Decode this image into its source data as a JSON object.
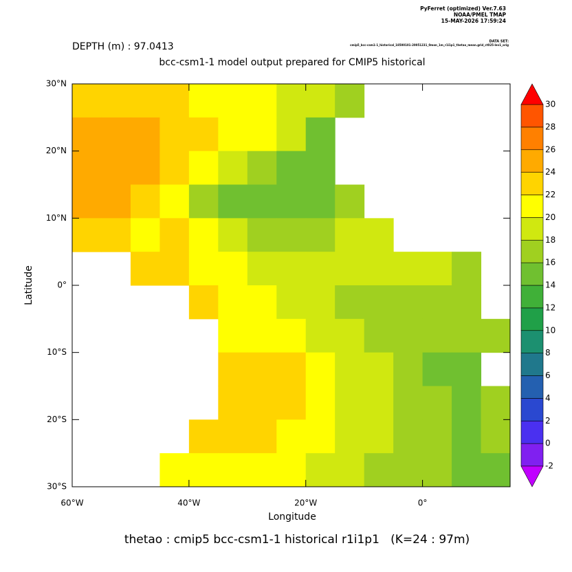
{
  "chart_data": {
    "type": "heatmap",
    "header": [
      "PyFerret (optimized) Ver.7.63",
      "NOAA/PMEL TMAP",
      "15-MAY-2026 17:59:24"
    ],
    "dataset_label": "DATA SET:",
    "dataset": "cmip5_bcc-csm1-1_historical_18500101-20051231_0mon_1m_r1i1p1_thetao_mean.grid_ct025-lev1_orig",
    "depth_label": "DEPTH (m) : 97.0413",
    "title": "bcc-csm1-1 model output prepared for CMIP5 historical",
    "xlabel": "Longitude",
    "ylabel": "Latitude",
    "footer": "thetao : cmip5 bcc-csm1-1 historical r1i1p1   (K=24 : 97m)",
    "xlim": [
      -60,
      15
    ],
    "ylim": [
      -30,
      30
    ],
    "xticks": [
      {
        "value": -60,
        "label": "60°W"
      },
      {
        "value": -40,
        "label": "40°W"
      },
      {
        "value": -20,
        "label": "20°W"
      },
      {
        "value": 0,
        "label": "0°"
      }
    ],
    "yticks": [
      {
        "value": 30,
        "label": "30°N"
      },
      {
        "value": 20,
        "label": "20°N"
      },
      {
        "value": 10,
        "label": "10°N"
      },
      {
        "value": 0,
        "label": "0°"
      },
      {
        "value": -10,
        "label": "10°S"
      },
      {
        "value": -20,
        "label": "20°S"
      },
      {
        "value": -30,
        "label": "30°S"
      }
    ],
    "x": [
      -57.5,
      -52.5,
      -47.5,
      -42.5,
      -37.5,
      -32.5,
      -27.5,
      -22.5,
      -17.5,
      -12.5,
      -7.5,
      -2.5,
      2.5,
      7.5,
      12.5
    ],
    "y": [
      27.5,
      22.5,
      17.5,
      12.5,
      7.5,
      2.5,
      -2.5,
      -7.5,
      -12.5,
      -17.5,
      -22.5,
      -27.5
    ],
    "z": [
      [
        22,
        23,
        23,
        22,
        21,
        21,
        20,
        19,
        18,
        17,
        null,
        null,
        null,
        null,
        null
      ],
      [
        25,
        25,
        24,
        23,
        22,
        21,
        20,
        18,
        15,
        null,
        null,
        null,
        null,
        null,
        null
      ],
      [
        24,
        25,
        24,
        23,
        21,
        19,
        17,
        15,
        14,
        null,
        null,
        null,
        null,
        null,
        null
      ],
      [
        24,
        24,
        23,
        21,
        17,
        15,
        14,
        14,
        15,
        16,
        null,
        null,
        null,
        null,
        null
      ],
      [
        23,
        22,
        21,
        22,
        20,
        18,
        17,
        17,
        17,
        18,
        18,
        null,
        null,
        null,
        null
      ],
      [
        null,
        null,
        23,
        23,
        21,
        20,
        19,
        18,
        18,
        18,
        18,
        18,
        18,
        17,
        null
      ],
      [
        null,
        null,
        null,
        null,
        22,
        21,
        20,
        19,
        18,
        17,
        17,
        17,
        17,
        17,
        null
      ],
      [
        null,
        null,
        null,
        null,
        null,
        21,
        21,
        20,
        19,
        18,
        17,
        17,
        17,
        16,
        16
      ],
      [
        null,
        null,
        null,
        null,
        null,
        23,
        23,
        22,
        21,
        19,
        18,
        16,
        15,
        15,
        null
      ],
      [
        null,
        null,
        null,
        null,
        null,
        23,
        22,
        22,
        21,
        19,
        18,
        17,
        16,
        15,
        16
      ],
      [
        null,
        null,
        null,
        null,
        22,
        23,
        22,
        21,
        20,
        19,
        18,
        17,
        16,
        15,
        16
      ],
      [
        null,
        null,
        null,
        20,
        21,
        21,
        21,
        20,
        19,
        18,
        17,
        16,
        16,
        15,
        15
      ]
    ],
    "colorbar": {
      "levels": [
        -2,
        0,
        2,
        4,
        6,
        8,
        10,
        12,
        14,
        16,
        18,
        20,
        22,
        24,
        26,
        28,
        30
      ],
      "colors": [
        "#c000ff",
        "#8020f0",
        "#4a30f0",
        "#2a48d0",
        "#2460b0",
        "#20788c",
        "#1c9070",
        "#20a048",
        "#40b038",
        "#70c030",
        "#a0d020",
        "#d0e810",
        "#ffff00",
        "#ffd400",
        "#ffaa00",
        "#ff8000",
        "#ff5500",
        "#ff2a00",
        "#ff0000"
      ]
    }
  }
}
